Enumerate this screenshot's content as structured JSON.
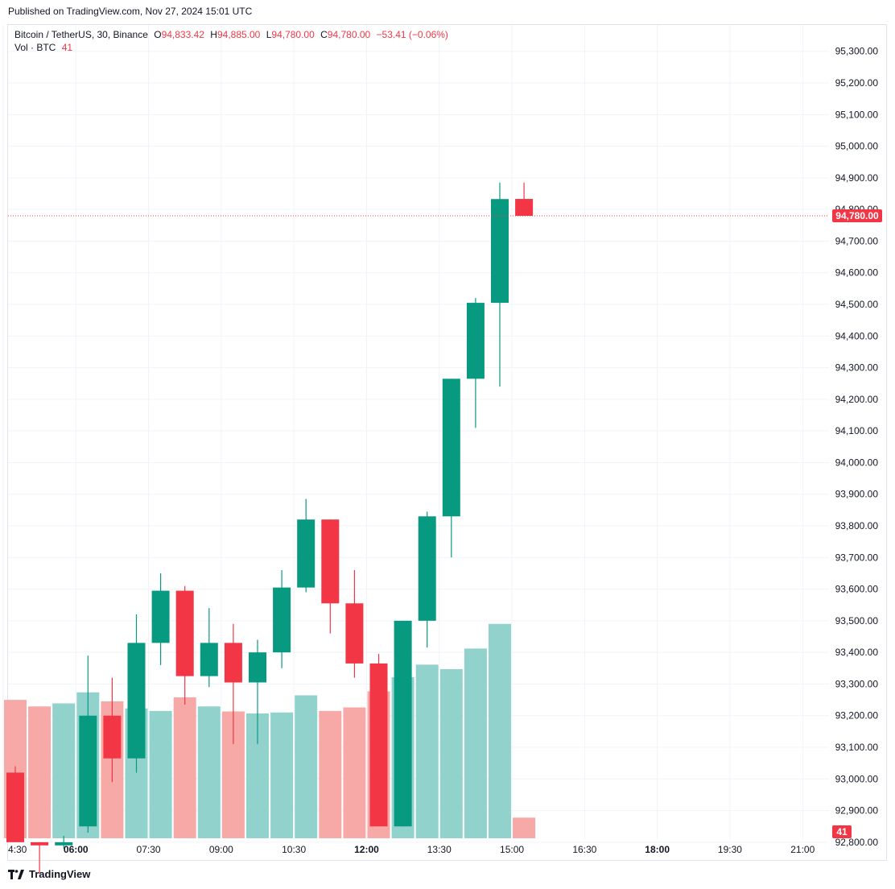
{
  "published": "Published on TradingView.com, Nov 27, 2024 15:01 UTC",
  "legend": {
    "symbol": "Bitcoin / TetherUS, 30, Binance",
    "o_label": "O",
    "o": "94,833.42",
    "h_label": "H",
    "h": "94,885.00",
    "l_label": "L",
    "l": "94,780.00",
    "c_label": "C",
    "c": "94,780.00",
    "change": "−53.41 (−0.06%)",
    "vol_label": "Vol · BTC",
    "vol": "41"
  },
  "footer": {
    "brand": "TradingView"
  },
  "colors": {
    "up": "#089981",
    "down": "#f23645",
    "vol_up": "#92d2cc",
    "vol_down": "#f7a9a7",
    "grid": "#f0f3fa"
  },
  "chart_data": {
    "type": "candlestick",
    "title": "Bitcoin / TetherUS, 30, Binance",
    "x_ticks": [
      {
        "label": "4:30",
        "slot": -0.5
      },
      {
        "label": "06:00",
        "slot": 2.5
      },
      {
        "label": "07:30",
        "slot": 5.5
      },
      {
        "label": "09:00",
        "slot": 8.5
      },
      {
        "label": "10:30",
        "slot": 11.5
      },
      {
        "label": "12:00",
        "slot": 14.5
      },
      {
        "label": "13:30",
        "slot": 17.5
      },
      {
        "label": "15:00",
        "slot": 20.5
      },
      {
        "label": "16:30",
        "slot": 23.5
      },
      {
        "label": "18:00",
        "slot": 26.5
      },
      {
        "label": "19:30",
        "slot": 29.5
      },
      {
        "label": "21:00",
        "slot": 32.5
      }
    ],
    "bold_ticks": [
      "06:00",
      "12:00",
      "18:00"
    ],
    "y_ticks": [
      92800,
      92900,
      93000,
      93100,
      93200,
      93300,
      93400,
      93500,
      93600,
      93700,
      93800,
      93900,
      94000,
      94100,
      94200,
      94300,
      94400,
      94500,
      94600,
      94700,
      94800,
      94900,
      95000,
      95100,
      95200,
      95300
    ],
    "y_tick_labels": [
      "92,800.00",
      "92,900.00",
      "93,000.00",
      "93,100.00",
      "93,200.00",
      "93,300.00",
      "93,400.00",
      "93,500.00",
      "93,600.00",
      "93,700.00",
      "93,800.00",
      "93,900.00",
      "94,000.00",
      "94,100.00",
      "94,200.00",
      "94,300.00",
      "94,400.00",
      "94,500.00",
      "94,600.00",
      "94,700.00",
      "94,800.00",
      "94,900.00",
      "95,000.00",
      "95,100.00",
      "95,200.00",
      "95,300.00"
    ],
    "ylim": [
      92775,
      95360
    ],
    "last_price": 94780,
    "last_price_label": "94,780.00",
    "volume_label": "41",
    "candles": [
      {
        "time": "04:30",
        "o": 93020,
        "h": 93040,
        "l": 92800,
        "c": 92800
      },
      {
        "time": "05:00",
        "o": 92800,
        "h": 92800,
        "l": 92700,
        "c": 92790
      },
      {
        "time": "05:30",
        "o": 92790,
        "h": 92820,
        "l": 92780,
        "c": 92800
      },
      {
        "time": "06:00",
        "o": 92850,
        "h": 93390,
        "l": 92830,
        "c": 93200
      },
      {
        "time": "06:30",
        "o": 93200,
        "h": 93320,
        "l": 92990,
        "c": 93065
      },
      {
        "time": "07:00",
        "o": 93065,
        "h": 93520,
        "l": 93020,
        "c": 93430
      },
      {
        "time": "07:30",
        "o": 93430,
        "h": 93650,
        "l": 93360,
        "c": 93595
      },
      {
        "time": "08:00",
        "o": 93595,
        "h": 93610,
        "l": 93235,
        "c": 93325
      },
      {
        "time": "08:30",
        "o": 93325,
        "h": 93540,
        "l": 93290,
        "c": 93430
      },
      {
        "time": "09:00",
        "o": 93430,
        "h": 93490,
        "l": 93110,
        "c": 93305
      },
      {
        "time": "09:30",
        "o": 93305,
        "h": 93440,
        "l": 93110,
        "c": 93400
      },
      {
        "time": "10:00",
        "o": 93400,
        "h": 93660,
        "l": 93350,
        "c": 93605
      },
      {
        "time": "10:30",
        "o": 93605,
        "h": 93885,
        "l": 93590,
        "c": 93820
      },
      {
        "time": "11:00",
        "o": 93820,
        "h": 93820,
        "l": 93460,
        "c": 93555
      },
      {
        "time": "11:30",
        "o": 93555,
        "h": 93660,
        "l": 93320,
        "c": 93365
      },
      {
        "time": "12:00",
        "o": 93365,
        "h": 93395,
        "l": 92850,
        "c": 92850
      },
      {
        "time": "12:30",
        "o": 92850,
        "h": 93500,
        "l": 92850,
        "c": 93500
      },
      {
        "time": "13:00",
        "o": 93500,
        "h": 93845,
        "l": 93415,
        "c": 93830
      },
      {
        "time": "13:30",
        "o": 93830,
        "h": 94265,
        "l": 93700,
        "c": 94265
      },
      {
        "time": "14:00",
        "o": 94265,
        "h": 94520,
        "l": 94110,
        "c": 94505
      },
      {
        "time": "14:30",
        "o": 94505,
        "h": 94885,
        "l": 94240,
        "c": 94833
      },
      {
        "time": "15:00",
        "o": 94833.42,
        "h": 94885,
        "l": 94780,
        "c": 94780
      }
    ],
    "volumes": [
      275,
      262,
      268,
      290,
      272,
      258,
      253,
      280,
      262,
      252,
      248,
      250,
      284,
      253,
      260,
      292,
      320,
      345,
      336,
      377,
      426,
      41
    ],
    "volume_max": 480
  }
}
